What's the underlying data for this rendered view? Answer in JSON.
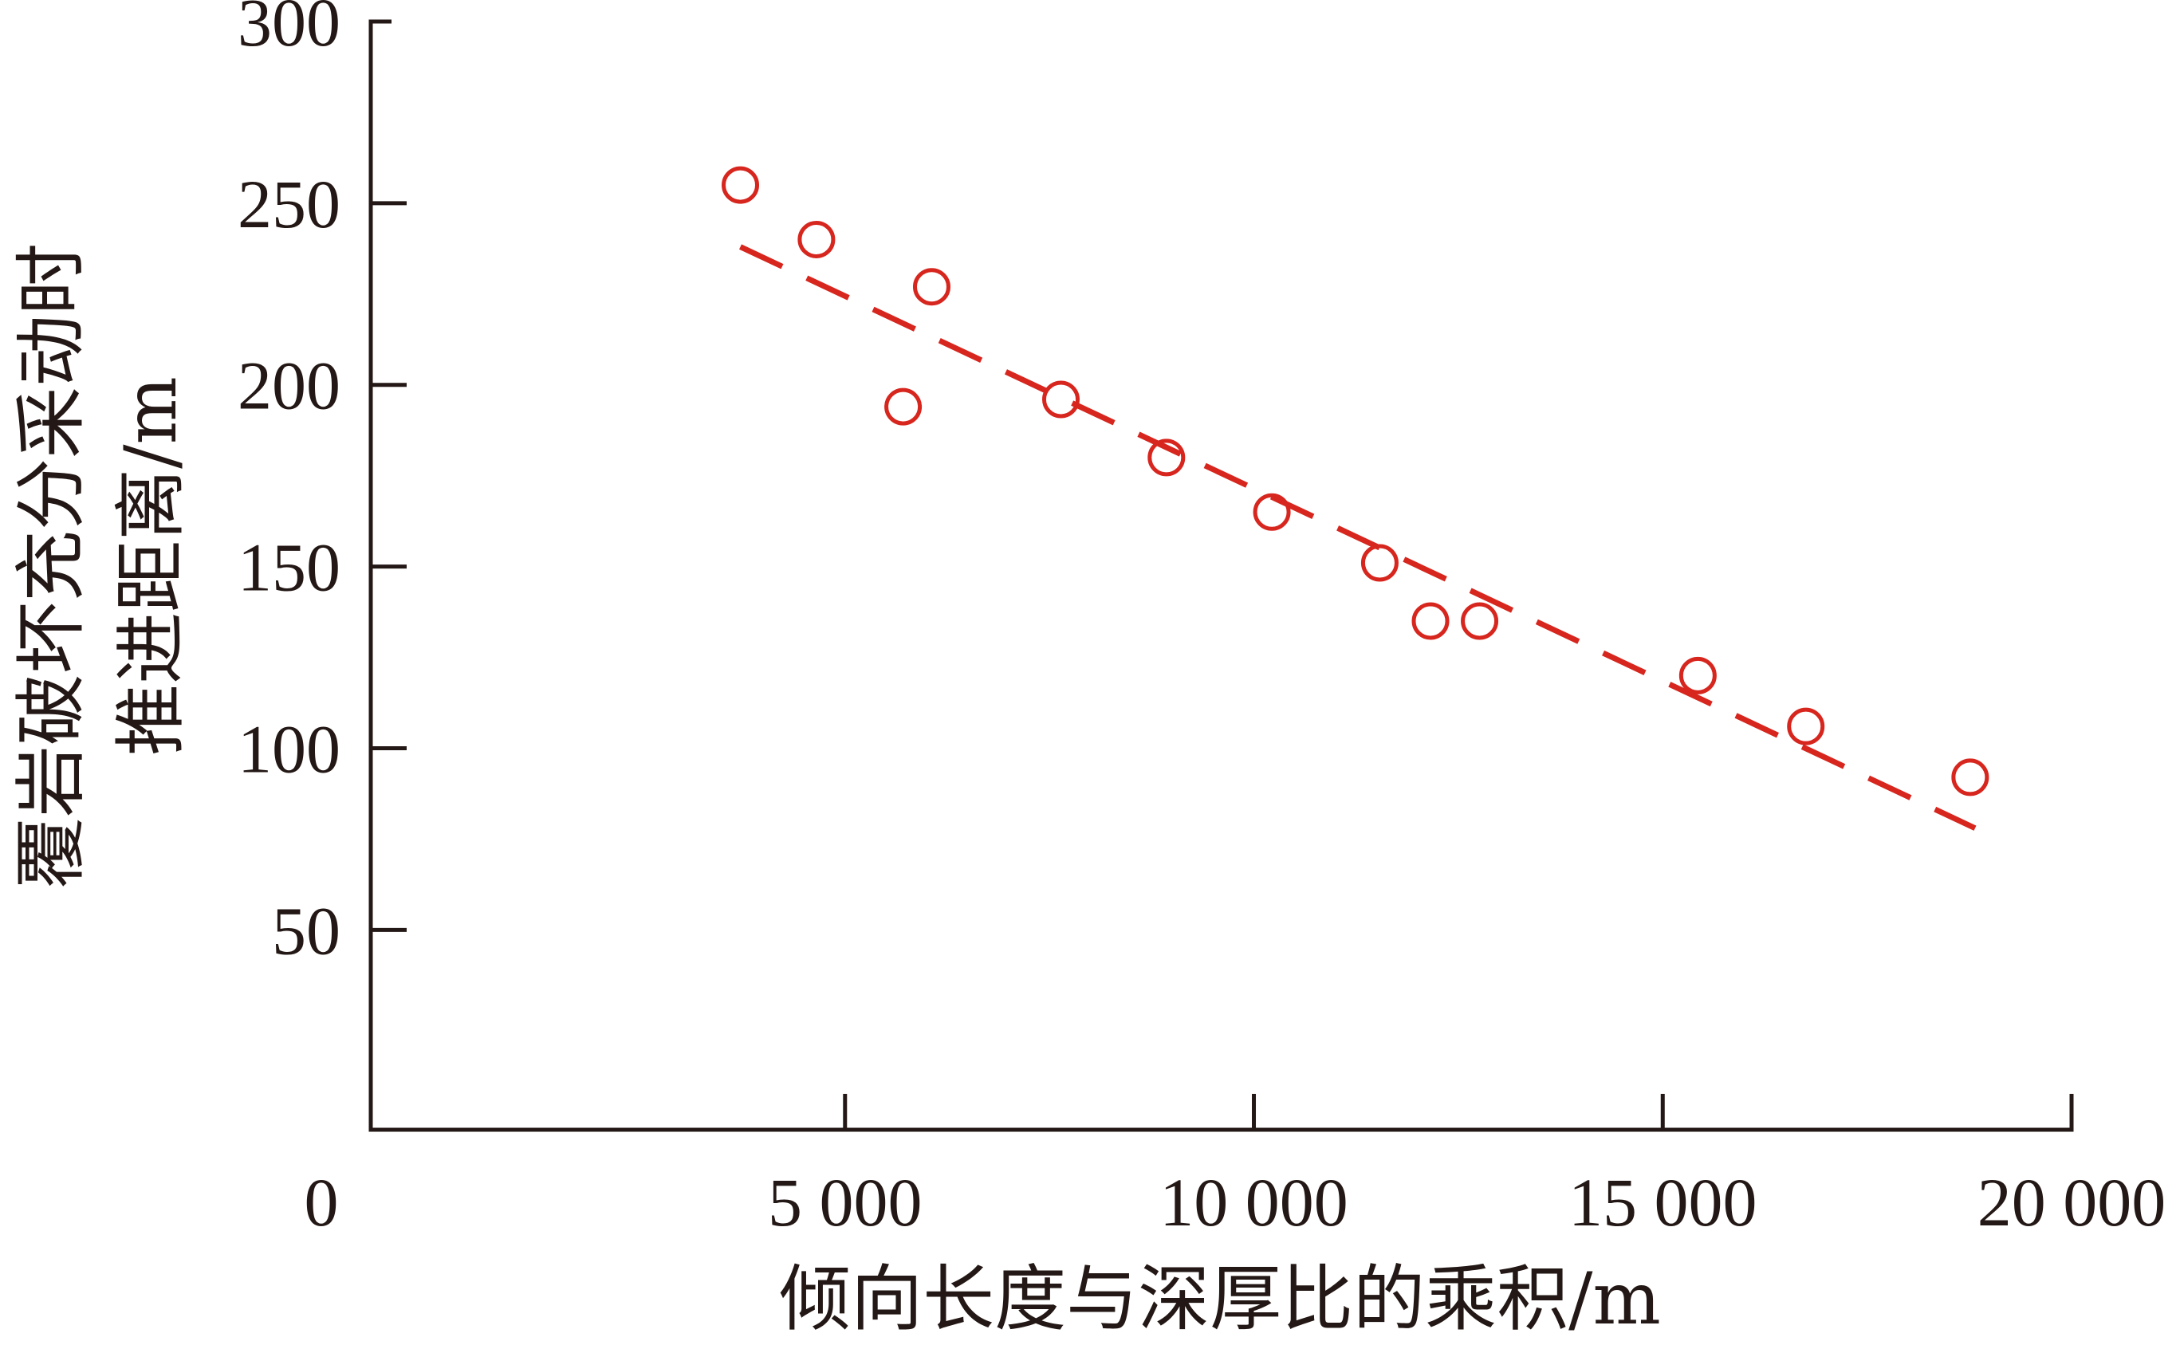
{
  "chart_data": {
    "type": "scatter",
    "title": "",
    "xlabel": "倾向长度与深厚比的乘积/m",
    "ylabel_lines": [
      "覆岩破坏充分采动时",
      "推进距离/m"
    ],
    "xlim": [
      -800,
      20000
    ],
    "ylim": [
      -5,
      300
    ],
    "origin_label": "0",
    "x_ticks": [
      {
        "value": 5000,
        "label": "5 000"
      },
      {
        "value": 10000,
        "label": "10 000"
      },
      {
        "value": 15000,
        "label": "15 000"
      },
      {
        "value": 20000,
        "label": "20 000"
      }
    ],
    "y_ticks": [
      {
        "value": 50,
        "label": "50"
      },
      {
        "value": 100,
        "label": "100"
      },
      {
        "value": 150,
        "label": "150"
      },
      {
        "value": 200,
        "label": "200"
      },
      {
        "value": 250,
        "label": "250"
      },
      {
        "value": 300,
        "label": "300"
      }
    ],
    "series": [
      {
        "marker": "open-circle",
        "color": "#d7261e",
        "points": [
          {
            "x": 3720,
            "y": 255
          },
          {
            "x": 4650,
            "y": 240
          },
          {
            "x": 5710,
            "y": 194
          },
          {
            "x": 6060,
            "y": 227
          },
          {
            "x": 7640,
            "y": 196
          },
          {
            "x": 8930,
            "y": 180
          },
          {
            "x": 10220,
            "y": 165
          },
          {
            "x": 11540,
            "y": 151
          },
          {
            "x": 12160,
            "y": 135
          },
          {
            "x": 12760,
            "y": 135
          },
          {
            "x": 15430,
            "y": 120
          },
          {
            "x": 16750,
            "y": 106
          },
          {
            "x": 18760,
            "y": 92
          }
        ]
      }
    ],
    "trendline": {
      "style": "dashed",
      "color": "#d7261e",
      "from": {
        "x": 3720,
        "y": 238
      },
      "to": {
        "x": 18820,
        "y": 78
      }
    },
    "grid": false,
    "legend": "none"
  }
}
